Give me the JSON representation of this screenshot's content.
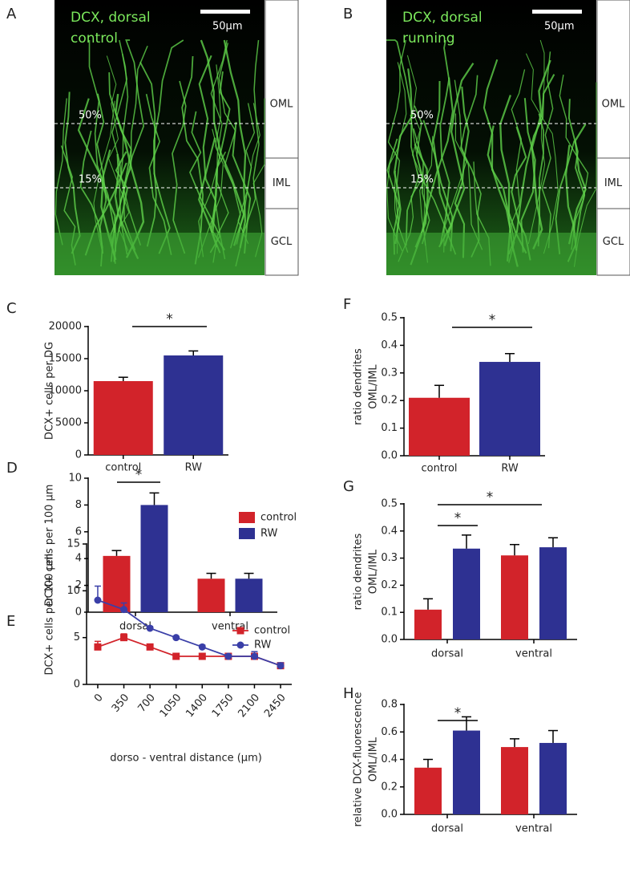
{
  "images": [
    {
      "panel": "A",
      "title": [
        "DCX, dorsal",
        "control"
      ],
      "scale": "50µm",
      "lines": [
        "50%",
        "15%"
      ],
      "layers": [
        "OML",
        "IML",
        "GCL"
      ]
    },
    {
      "panel": "B",
      "title": [
        "DCX, dorsal",
        "running"
      ],
      "scale": "50µm",
      "lines": [
        "50%",
        "15%"
      ],
      "layers": [
        "OML",
        "IML",
        "GCL"
      ]
    }
  ],
  "chart_data": [
    {
      "type": "bar",
      "panel": "C",
      "ylabel": [
        "DCX+ cells per DG"
      ],
      "categories": [
        "control",
        "RW"
      ],
      "values": [
        11500,
        15500
      ],
      "errors": [
        600,
        700
      ],
      "colors": [
        "#d2232a",
        "#2e3192"
      ],
      "ylim": [
        0,
        20000
      ],
      "yticks": [
        0,
        5000,
        10000,
        15000,
        20000
      ],
      "annotations": [
        "*"
      ]
    },
    {
      "type": "bar",
      "panel": "F",
      "ylabel": [
        "ratio dendrites",
        "OML/IML"
      ],
      "categories": [
        "control",
        "RW"
      ],
      "values": [
        0.21,
        0.34
      ],
      "errors": [
        0.045,
        0.03
      ],
      "colors": [
        "#d2232a",
        "#2e3192"
      ],
      "ylim": [
        0,
        0.5
      ],
      "yticks": [
        {
          "value": 0,
          "label": "0.0"
        },
        0.1,
        0.2,
        0.3,
        0.4,
        0.5
      ],
      "annotations": [
        "*"
      ]
    },
    {
      "type": "groupbar",
      "panel": "D",
      "ylabel": [
        "DCX+ cells per 100 µm"
      ],
      "categories": [
        "dorsal",
        "ventral"
      ],
      "series": [
        {
          "name": "control",
          "color": "#d2232a",
          "values": [
            4.2,
            2.5
          ],
          "errors": [
            0.4,
            0.4
          ]
        },
        {
          "name": "RW",
          "color": "#2e3192",
          "values": [
            8,
            2.5
          ],
          "errors": [
            0.9,
            0.4
          ]
        }
      ],
      "ylim": [
        0,
        10
      ],
      "yticks": [
        0,
        2,
        4,
        6,
        8,
        10
      ],
      "annotations": [
        "*"
      ]
    },
    {
      "type": "groupbar",
      "panel": "G",
      "ylabel": [
        "ratio dendrites",
        "OML/IML"
      ],
      "categories": [
        "dorsal",
        "ventral"
      ],
      "series": [
        {
          "name": "control",
          "color": "#d2232a",
          "values": [
            0.11,
            0.31
          ],
          "errors": [
            0.04,
            0.04
          ]
        },
        {
          "name": "RW",
          "color": "#2e3192",
          "values": [
            0.335,
            0.34
          ],
          "errors": [
            0.05,
            0.035
          ]
        }
      ],
      "ylim": [
        0,
        0.5
      ],
      "yticks": [
        {
          "value": 0,
          "label": "0.0"
        },
        0.1,
        0.2,
        0.3,
        0.4,
        0.5
      ],
      "annotations": [
        "*",
        "*"
      ]
    },
    {
      "type": "line",
      "panel": "E",
      "ylabel": [
        "DCX+ cells per 100 µm"
      ],
      "xlabel": "dorso - ventral distance (µm)",
      "x": [
        0,
        350,
        700,
        1050,
        1400,
        1750,
        2100,
        2450
      ],
      "series": [
        {
          "name": "control",
          "color": "#d2232a",
          "marker": "square",
          "values": [
            4,
            5,
            4,
            3,
            3,
            3,
            3,
            2
          ],
          "errors": [
            0.6,
            0.4,
            0.2,
            0.1,
            0.1,
            0.1,
            0.2,
            0.2
          ]
        },
        {
          "name": "RW",
          "color": "#3a3fa8",
          "marker": "circle",
          "values": [
            9,
            8,
            6,
            5,
            4,
            3,
            3,
            2
          ],
          "errors": [
            1.5,
            0.7,
            0.2,
            0.1,
            0.2,
            0.2,
            0.5,
            0.3
          ]
        }
      ],
      "xlim": [
        -150,
        2600
      ],
      "xticks": [
        0,
        350,
        700,
        1050,
        1400,
        1750,
        2100,
        2450
      ],
      "ylim": [
        0,
        15
      ],
      "yticks": [
        0,
        5,
        10,
        15
      ]
    },
    {
      "type": "groupbar",
      "panel": "H",
      "ylabel": [
        "relative DCX-fluorescence",
        "OML/IML"
      ],
      "categories": [
        "dorsal",
        "ventral"
      ],
      "series": [
        {
          "name": "control",
          "color": "#d2232a",
          "values": [
            0.34,
            0.49
          ],
          "errors": [
            0.06,
            0.06
          ]
        },
        {
          "name": "RW",
          "color": "#2e3192",
          "values": [
            0.61,
            0.52
          ],
          "errors": [
            0.1,
            0.09
          ]
        }
      ],
      "ylim": [
        0,
        0.8
      ],
      "yticks": [
        {
          "value": 0,
          "label": "0.0"
        },
        0.2,
        0.4,
        0.6,
        0.8
      ],
      "annotations": [
        "*"
      ]
    }
  ]
}
